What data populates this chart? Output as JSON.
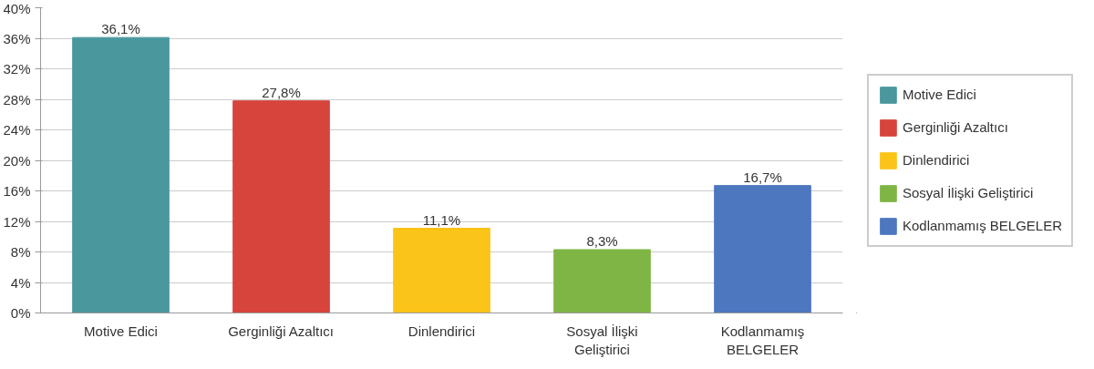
{
  "chart_data": {
    "type": "bar",
    "categories": [
      "Motive Edici",
      "Gerginliği Azaltıcı",
      "Dinlendirici",
      "Sosyal İlişki Geliştirici",
      "Kodlanmamış BELGELER"
    ],
    "series": [
      {
        "name": "Motive Edici",
        "color": "#4a979e",
        "values": [
          36.1,
          null,
          null,
          null,
          null
        ],
        "value_labels": [
          "36,1%",
          null,
          null,
          null,
          null
        ]
      },
      {
        "name": "Gerginliği Azaltıcı",
        "color": "#d6443b",
        "values": [
          null,
          27.8,
          null,
          null,
          null
        ],
        "value_labels": [
          null,
          "27,8%",
          null,
          null,
          null
        ]
      },
      {
        "name": "Dinlendirici",
        "color": "#fbc419",
        "values": [
          null,
          null,
          11.1,
          null,
          null
        ],
        "value_labels": [
          null,
          null,
          "11,1%",
          null,
          null
        ]
      },
      {
        "name": "Sosyal İlişki Geliştirici",
        "color": "#7fb545",
        "values": [
          null,
          null,
          null,
          8.3,
          null
        ],
        "value_labels": [
          null,
          null,
          null,
          "8,3%",
          null
        ]
      },
      {
        "name": "Kodlanmamış BELGELER",
        "color": "#4d77bf",
        "values": [
          null,
          null,
          null,
          null,
          16.7
        ],
        "value_labels": [
          null,
          null,
          null,
          null,
          "16,7%"
        ]
      }
    ],
    "ylim": [
      0,
      40
    ],
    "yticks": [
      {
        "value": 0,
        "label": "0%"
      },
      {
        "value": 4,
        "label": "4%"
      },
      {
        "value": 8,
        "label": "8%"
      },
      {
        "value": 12,
        "label": "12%"
      },
      {
        "value": 16,
        "label": "16%"
      },
      {
        "value": 20,
        "label": "20%"
      },
      {
        "value": 24,
        "label": "24%"
      },
      {
        "value": 28,
        "label": "28%"
      },
      {
        "value": 32,
        "label": "32%"
      },
      {
        "value": 36,
        "label": "36%"
      },
      {
        "value": 40,
        "label": "40%"
      }
    ],
    "grid": "y",
    "legend": "right"
  }
}
